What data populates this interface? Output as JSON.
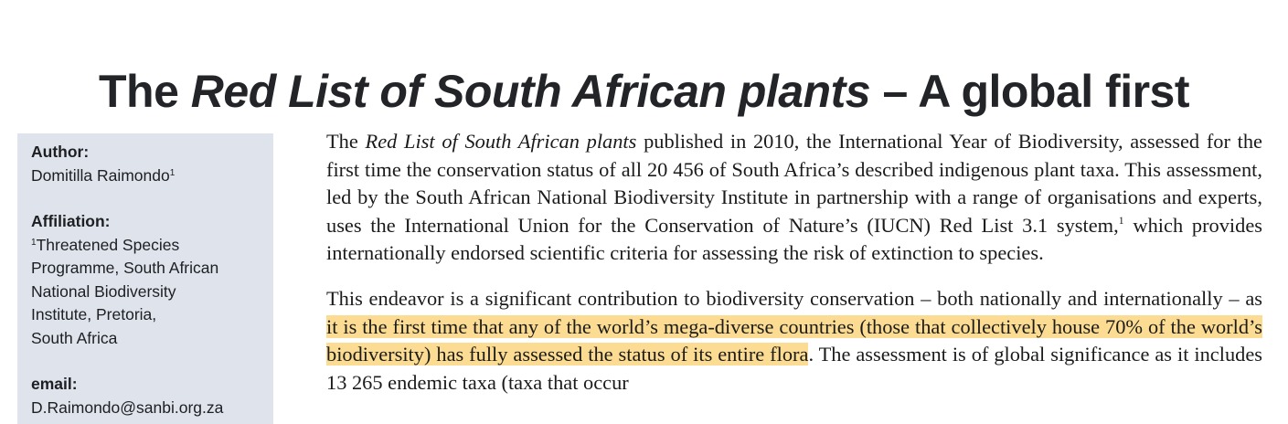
{
  "title": {
    "prefix": "The ",
    "italic": "Red List of South African plants",
    "suffix": " – A global first"
  },
  "sidebar": {
    "author_label": "Author:",
    "author_name": "Domitilla Raimondo",
    "author_sup": "1",
    "affiliation_label": "Affiliation:",
    "affiliation_sup": "1",
    "affiliation_lines": [
      "Threatened Species",
      "Programme, South African",
      "National Biodiversity",
      "Institute, Pretoria,",
      "South Africa"
    ],
    "email_label": "email:",
    "email_value": "D.Raimondo@sanbi.org.za"
  },
  "paragraph1": {
    "lead": "The ",
    "italic": "Red List of South African plants",
    "text_a": " published in 2010, the International Year of Biodiversity, assessed for the first time the conservation status of all 20 456 of South Africa’s described indigenous plant taxa. This assessment, led by the South African National Biodiversity Institute in partnership with a range of organisations and experts, uses the International Union for the Conservation of Nature’s (IUCN) Red List 3.1 system,",
    "footnote": "1",
    "text_b": " which provides internationally endorsed scientific criteria for assessing the risk of extinction to species."
  },
  "paragraph2": {
    "text_a": "This endeavor is a significant contribution to biodiversity conservation – both nationally and internationally – as ",
    "highlight": "it is the first time that any of the world’s mega-diverse countries (those that collectively house 70% of the world’s biodiversity) has fully assessed the status of its entire flora",
    "text_b": ". The assessment is of global significance as it includes 13 265 endemic taxa (taxa that occur"
  },
  "colors": {
    "highlight": "#fbdc92",
    "sidebar_bg": "#dfe3ec"
  }
}
